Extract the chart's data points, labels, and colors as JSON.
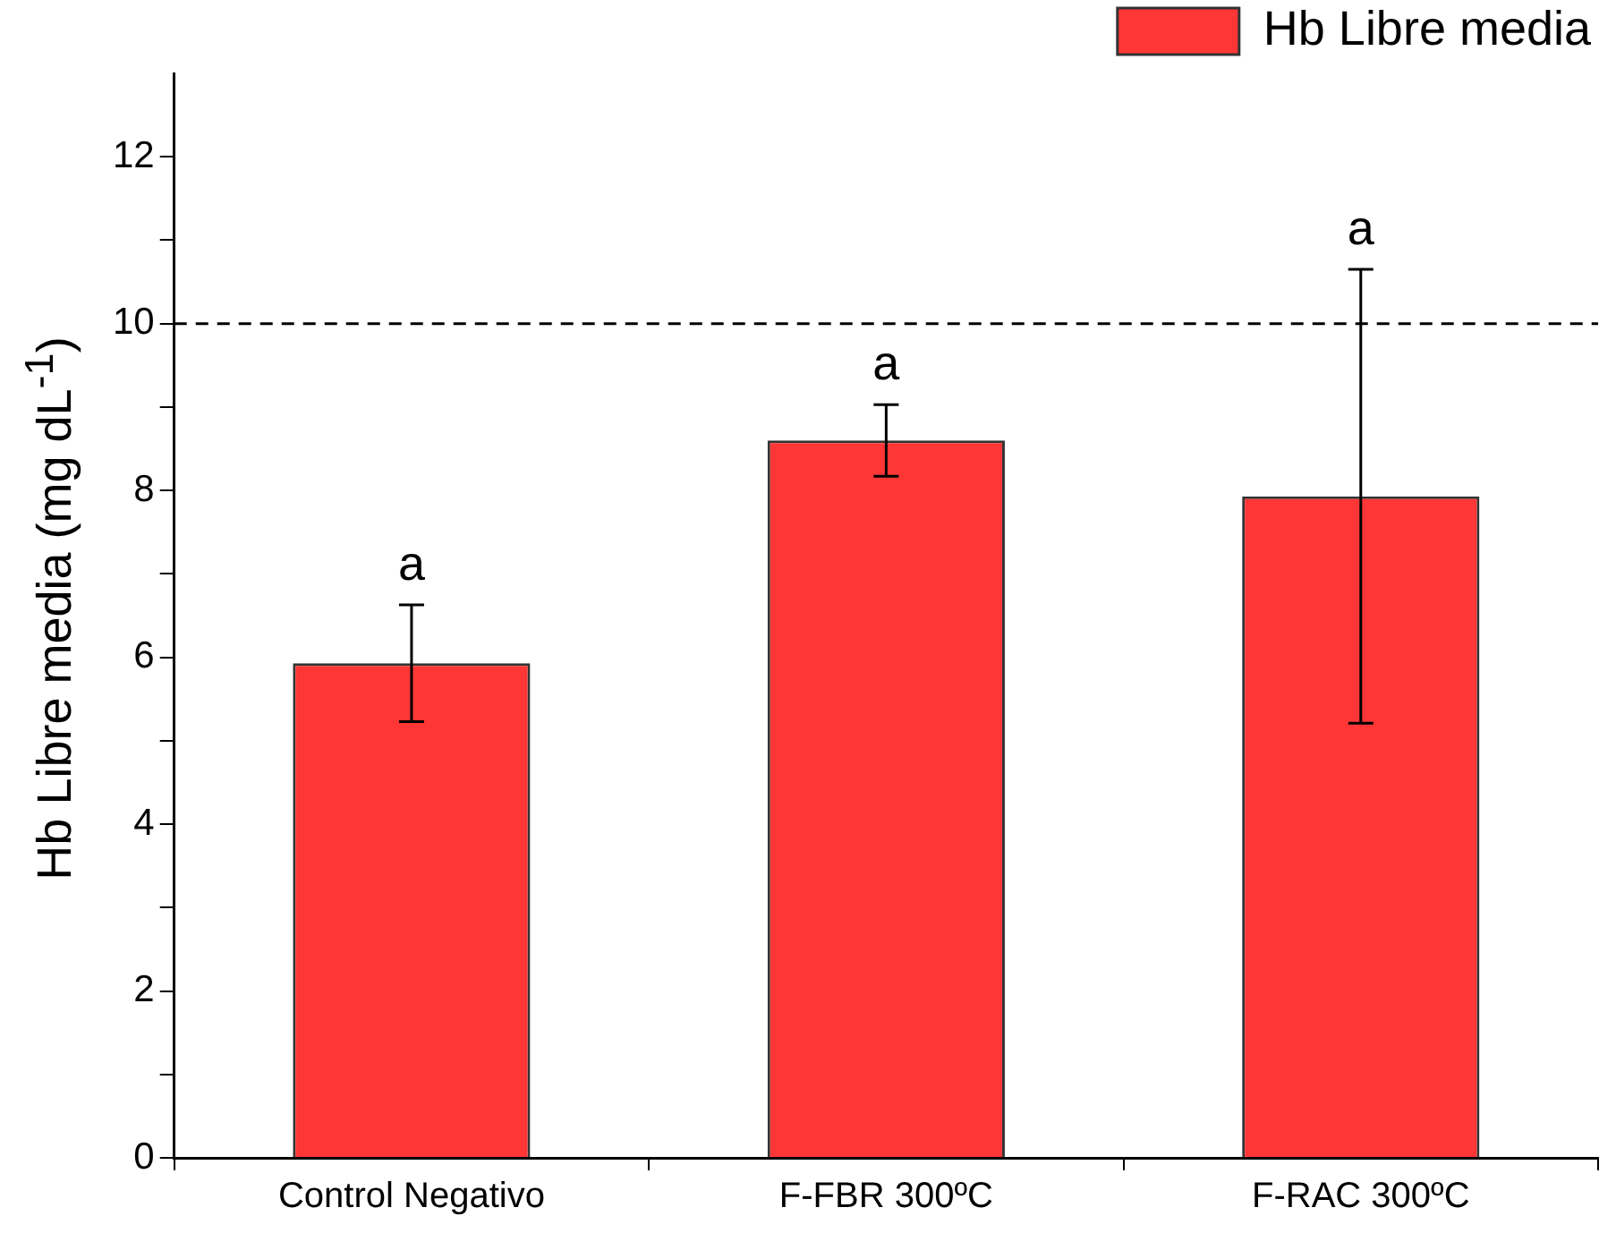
{
  "chart_data": {
    "type": "bar",
    "ylabel": "Hb Libre media (mg dL$^{-1}$)",
    "categories": [
      "Control Negativo",
      "F-FBR 300ºC",
      "F-RAC 300ºC"
    ],
    "series": [
      {
        "name": "Hb Libre media",
        "color": "#ff3636",
        "values": [
          5.93,
          8.6,
          7.93
        ],
        "errors": [
          0.7,
          0.43,
          2.72
        ]
      }
    ],
    "ylim": [
      0,
      13
    ],
    "yticks": [
      0,
      {
        "value": 1,
        "label": null
      },
      2,
      {
        "value": 3,
        "label": null
      },
      4,
      {
        "value": 5,
        "label": null
      },
      6,
      {
        "value": 7,
        "label": null
      },
      8,
      {
        "value": 9,
        "label": null
      },
      10,
      {
        "value": 11,
        "label": null
      },
      12
    ],
    "ref_lines": [
      {
        "axis": "y",
        "value": 10,
        "line_style": "dashed",
        "color": "#000000"
      }
    ],
    "annotations": [
      "a",
      "a",
      "a"
    ],
    "legend": "top right",
    "grid": false
  }
}
